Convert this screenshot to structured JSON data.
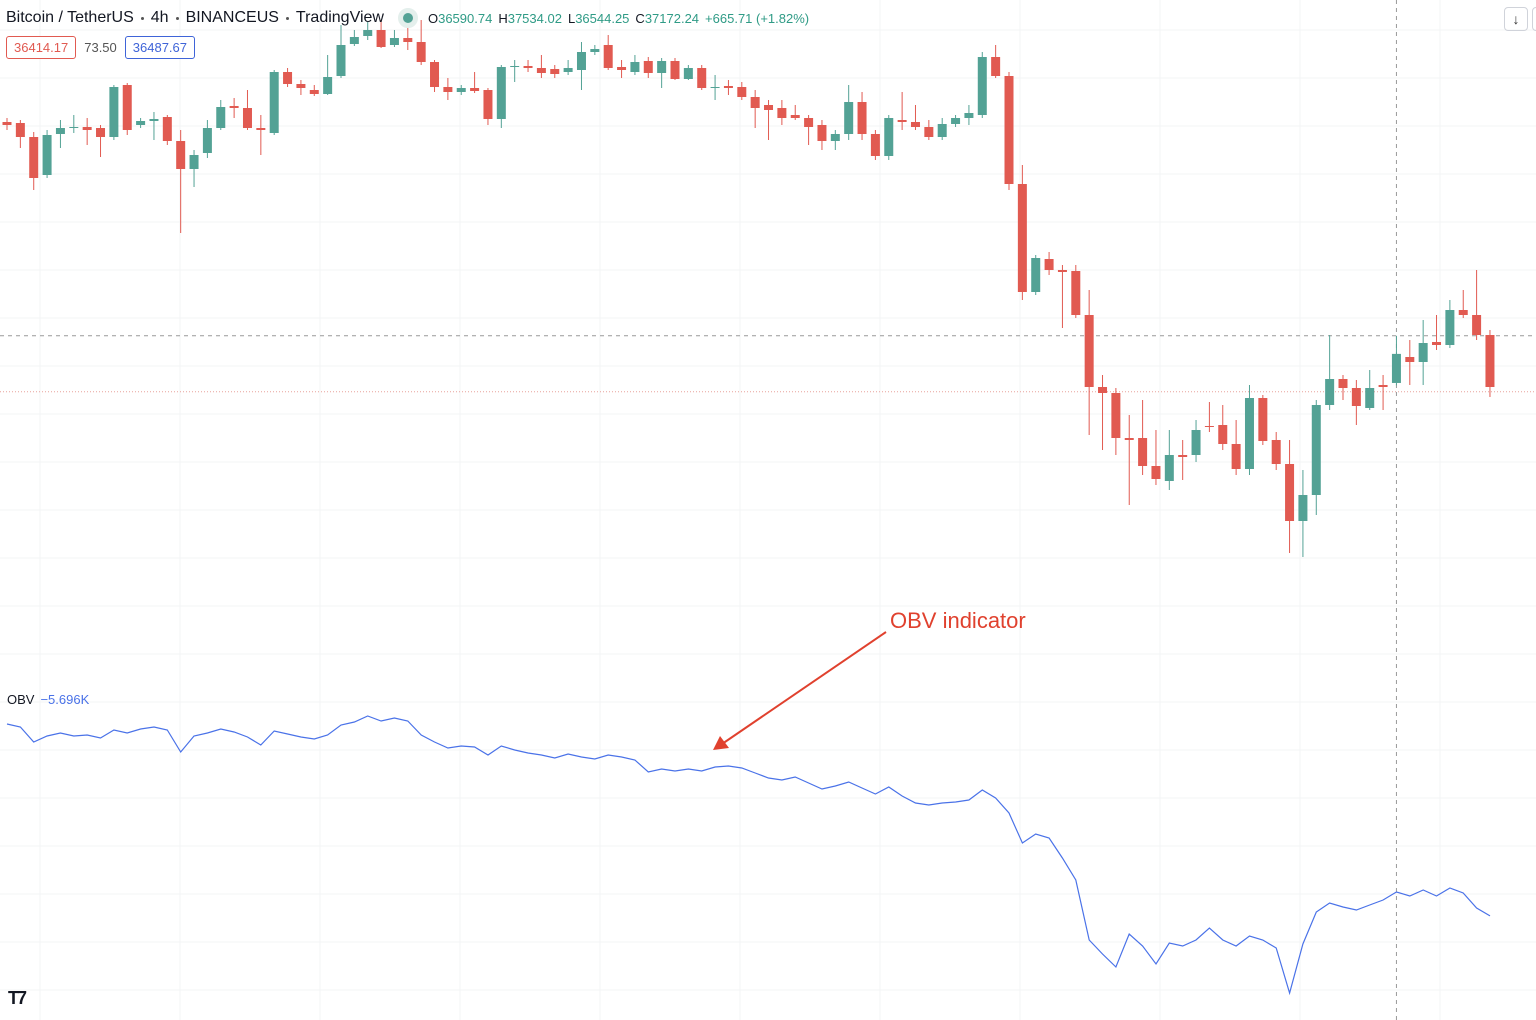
{
  "header": {
    "symbol_parts": [
      "Bitcoin / TetherUS",
      "4h",
      "BINANCEUS",
      "TradingView"
    ],
    "ohlc_letters": [
      "O",
      "H",
      "L",
      "C"
    ],
    "change_label": "+665.71 (+1.82%)",
    "bid": 36414.17,
    "spread": {
      "value": 73.5,
      "label": "73.50"
    },
    "ask": 36487.67,
    "annotation": "OBV indicator"
  },
  "chart_data": [
    {
      "type": "candlestick",
      "up_color": "#53a295",
      "down_color": "#e15a51",
      "ylim": [
        32250,
        44250
      ],
      "ohlc": [
        [
          41810,
          41890,
          41650,
          41750
        ],
        [
          41790,
          41850,
          41290,
          41510
        ],
        [
          41510,
          41610,
          40450,
          40690
        ],
        [
          40750,
          41650,
          40690,
          41550
        ],
        [
          41570,
          41850,
          41290,
          41690
        ],
        [
          41690,
          41950,
          41590,
          41710
        ],
        [
          41710,
          41890,
          41350,
          41650
        ],
        [
          41690,
          41750,
          41110,
          41510
        ],
        [
          41510,
          42550,
          41450,
          42510
        ],
        [
          42550,
          42590,
          41550,
          41650
        ],
        [
          41750,
          41890,
          41690,
          41830
        ],
        [
          41830,
          42010,
          41450,
          41870
        ],
        [
          41910,
          41950,
          41350,
          41430
        ],
        [
          41430,
          41650,
          39590,
          40870
        ],
        [
          40870,
          41250,
          40510,
          41150
        ],
        [
          41190,
          41850,
          41090,
          41690
        ],
        [
          41690,
          42250,
          41650,
          42110
        ],
        [
          42130,
          42290,
          41890,
          42090
        ],
        [
          42090,
          42450,
          41650,
          41690
        ],
        [
          41690,
          41950,
          41150,
          41650
        ],
        [
          41590,
          42850,
          41550,
          42810
        ],
        [
          42810,
          42890,
          42510,
          42570
        ],
        [
          42570,
          42650,
          42350,
          42490
        ],
        [
          42450,
          42550,
          42330,
          42370
        ],
        [
          42370,
          43150,
          42350,
          42710
        ],
        [
          42730,
          43750,
          42690,
          43350
        ],
        [
          43370,
          43650,
          43330,
          43510
        ],
        [
          43530,
          43810,
          43450,
          43650
        ],
        [
          43650,
          43850,
          43290,
          43310
        ],
        [
          43350,
          43650,
          43310,
          43490
        ],
        [
          43490,
          43690,
          43250,
          43410
        ],
        [
          43410,
          43850,
          42950,
          43010
        ],
        [
          43010,
          43050,
          42410,
          42510
        ],
        [
          42510,
          42690,
          42250,
          42410
        ],
        [
          42410,
          42550,
          42350,
          42490
        ],
        [
          42490,
          42810,
          42390,
          42430
        ],
        [
          42450,
          42490,
          41750,
          41870
        ],
        [
          41870,
          42950,
          41690,
          42910
        ],
        [
          42910,
          43050,
          42610,
          42930
        ],
        [
          42930,
          43050,
          42810,
          42890
        ],
        [
          42890,
          43150,
          42690,
          42790
        ],
        [
          42870,
          42950,
          42690,
          42770
        ],
        [
          42810,
          43050,
          42750,
          42890
        ],
        [
          42850,
          43410,
          42450,
          43210
        ],
        [
          43210,
          43350,
          43150,
          43270
        ],
        [
          43350,
          43550,
          42850,
          42890
        ],
        [
          42910,
          43050,
          42690,
          42850
        ],
        [
          42810,
          43150,
          42750,
          43010
        ],
        [
          43030,
          43110,
          42690,
          42790
        ],
        [
          42790,
          43090,
          42490,
          43030
        ],
        [
          43030,
          43090,
          42650,
          42670
        ],
        [
          42670,
          42950,
          42650,
          42890
        ],
        [
          42890,
          42950,
          42450,
          42490
        ],
        [
          42490,
          42750,
          42250,
          42510
        ],
        [
          42530,
          42650,
          42350,
          42490
        ],
        [
          42510,
          42610,
          42250,
          42310
        ],
        [
          42310,
          42450,
          41690,
          42090
        ],
        [
          42150,
          42250,
          41450,
          42050
        ],
        [
          42090,
          42250,
          41750,
          41890
        ],
        [
          41950,
          42150,
          41850,
          41890
        ],
        [
          41890,
          41950,
          41350,
          41710
        ],
        [
          41750,
          41850,
          41250,
          41430
        ],
        [
          41430,
          41650,
          41250,
          41570
        ],
        [
          41570,
          42550,
          41450,
          42210
        ],
        [
          42210,
          42410,
          41450,
          41570
        ],
        [
          41570,
          41650,
          41050,
          41130
        ],
        [
          41130,
          41950,
          41050,
          41890
        ],
        [
          41850,
          42410,
          41650,
          41810
        ],
        [
          41810,
          42150,
          41650,
          41710
        ],
        [
          41710,
          41850,
          41450,
          41510
        ],
        [
          41510,
          41890,
          41450,
          41770
        ],
        [
          41770,
          41950,
          41710,
          41890
        ],
        [
          41890,
          42150,
          41750,
          41990
        ],
        [
          41950,
          43210,
          41890,
          43110
        ],
        [
          43110,
          43350,
          42690,
          42730
        ],
        [
          42730,
          42810,
          40450,
          40570
        ],
        [
          40570,
          40950,
          38250,
          38410
        ],
        [
          38410,
          39150,
          38350,
          39090
        ],
        [
          39070,
          39210,
          38750,
          38850
        ],
        [
          38850,
          38950,
          37690,
          38810
        ],
        [
          38830,
          38950,
          37890,
          37950
        ],
        [
          37950,
          38450,
          35550,
          36510
        ],
        [
          36510,
          36750,
          35250,
          36390
        ],
        [
          36390,
          36490,
          35150,
          35490
        ],
        [
          35490,
          35950,
          34150,
          35450
        ],
        [
          35490,
          36250,
          34750,
          34930
        ],
        [
          34930,
          35650,
          34550,
          34670
        ],
        [
          34630,
          35650,
          34450,
          35150
        ],
        [
          35150,
          35450,
          34650,
          35110
        ],
        [
          35150,
          35850,
          35010,
          35650
        ],
        [
          35730,
          36210,
          35610,
          35710
        ],
        [
          35750,
          36150,
          35250,
          35370
        ],
        [
          35370,
          35850,
          34750,
          34870
        ],
        [
          34870,
          36550,
          34750,
          36290
        ],
        [
          36290,
          36350,
          35350,
          35430
        ],
        [
          35450,
          35610,
          34850,
          34970
        ],
        [
          34970,
          35450,
          33190,
          33830
        ],
        [
          33830,
          34850,
          33110,
          34350
        ],
        [
          34350,
          36250,
          33950,
          36150
        ],
        [
          36150,
          37550,
          36050,
          36670
        ],
        [
          36670,
          36750,
          36250,
          36490
        ],
        [
          36490,
          36650,
          35750,
          36130
        ],
        [
          36090,
          36850,
          36050,
          36490
        ],
        [
          36550,
          36750,
          36050,
          36510
        ],
        [
          36590.74,
          37534.02,
          36544.25,
          37172.24
        ],
        [
          37110,
          37450,
          36550,
          37010
        ],
        [
          37010,
          37850,
          36550,
          37390
        ],
        [
          37410,
          37950,
          37250,
          37350
        ],
        [
          37350,
          38250,
          37290,
          38050
        ],
        [
          38050,
          38450,
          37890,
          37950
        ],
        [
          37950,
          38850,
          37450,
          37550
        ],
        [
          37550,
          37650,
          36310,
          36510
        ]
      ]
    },
    {
      "type": "line",
      "name": "OBV",
      "color": "#4a72e8",
      "ylim": [
        -10.4,
        5.6
      ],
      "value_label": "−5.696K",
      "values": [
        3.9,
        3.75,
        3.0,
        3.3,
        3.45,
        3.3,
        3.35,
        3.2,
        3.6,
        3.45,
        3.65,
        3.75,
        3.6,
        2.5,
        3.3,
        3.45,
        3.65,
        3.5,
        3.25,
        2.85,
        3.55,
        3.4,
        3.25,
        3.15,
        3.35,
        3.85,
        4.0,
        4.3,
        4.05,
        4.2,
        4.05,
        3.35,
        3.0,
        2.7,
        2.8,
        2.75,
        2.35,
        2.8,
        2.6,
        2.45,
        2.35,
        2.2,
        2.4,
        2.25,
        2.15,
        2.35,
        2.25,
        2.1,
        1.5,
        1.65,
        1.55,
        1.65,
        1.55,
        1.75,
        1.8,
        1.7,
        1.45,
        1.2,
        1.1,
        1.25,
        0.95,
        0.65,
        0.8,
        1.0,
        0.7,
        0.4,
        0.75,
        0.3,
        -0.05,
        -0.15,
        -0.05,
        0.0,
        0.1,
        0.6,
        0.2,
        -0.55,
        -2.05,
        -1.6,
        -1.8,
        -2.8,
        -3.9,
        -6.9,
        -7.6,
        -8.25,
        -6.6,
        -7.2,
        -8.1,
        -7.05,
        -7.2,
        -6.9,
        -6.3,
        -6.9,
        -7.2,
        -6.7,
        -6.9,
        -7.3,
        -9.55,
        -7.1,
        -5.5,
        -5.05,
        -5.25,
        -5.4,
        -5.15,
        -4.9,
        -4.5,
        -4.7,
        -4.4,
        -4.7,
        -4.3,
        -4.55,
        -5.3,
        -5.696
      ]
    }
  ]
}
